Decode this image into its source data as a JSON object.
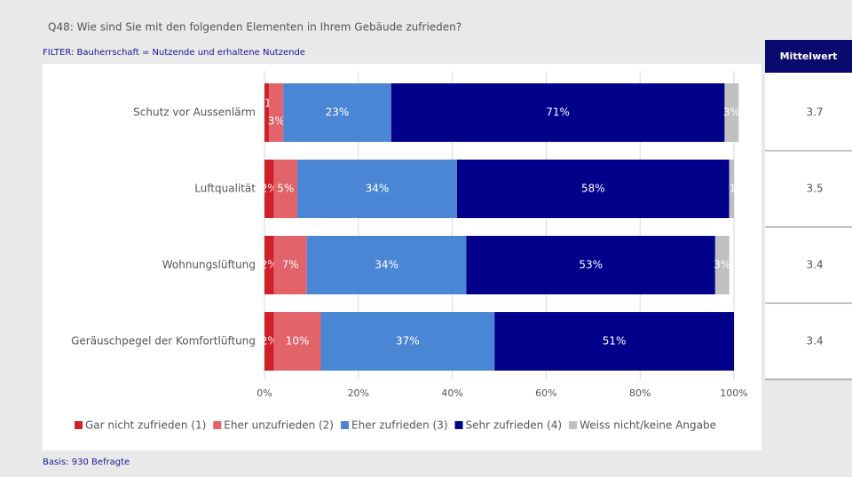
{
  "chart_data": {
    "type": "stacked-bar-horizontal",
    "title": "Q48:  Wie sind Sie mit den folgenden Elementen in Ihrem Gebäude zufrieden?",
    "subtitle": "FILTER: Bauherrschaft = Nutzende und erhaltene Nutzende",
    "note": "Basis: 930 Befragte",
    "categories": [
      "Schutz vor Aussenlärm",
      "Luftqualität",
      "Wohnungslüftung",
      "Geräuschpegel der Komfortlüftung"
    ],
    "series": [
      {
        "name": "Gar nicht zufrieden (1)",
        "color": "#d0202a",
        "values": [
          1,
          2,
          2,
          2
        ],
        "value_labels": [
          "1%",
          "2%",
          "2%",
          "2%"
        ]
      },
      {
        "name": "Eher unzufrieden (2)",
        "color": "#e2636a",
        "values": [
          3,
          5,
          7,
          10
        ],
        "value_labels": [
          "3%",
          "5%",
          "7%",
          "10%"
        ]
      },
      {
        "name": "Eher zufrieden (3)",
        "color": "#4a86d4",
        "values": [
          23,
          34,
          34,
          37
        ],
        "value_labels": [
          "23%",
          "34%",
          "34%",
          "37%"
        ]
      },
      {
        "name": "Sehr zufrieden (4)",
        "color": "#00008b",
        "values": [
          71,
          58,
          53,
          51
        ],
        "value_labels": [
          "71%",
          "58%",
          "53%",
          "51%"
        ]
      },
      {
        "name": "Weiss nicht/keine Angabe",
        "color": "#c0c0c0",
        "values": [
          3,
          1,
          3,
          null
        ],
        "value_labels": [
          "3%",
          "1%",
          "3%",
          null
        ]
      }
    ],
    "xlim": [
      0,
      100
    ],
    "xticks": [
      {
        "value": 0,
        "label": "0%"
      },
      {
        "value": 20,
        "label": "20%"
      },
      {
        "value": 40,
        "label": "40%"
      },
      {
        "value": 60,
        "label": "60%"
      },
      {
        "value": 80,
        "label": "80%"
      },
      {
        "value": 100,
        "label": "100%"
      }
    ],
    "grid": true,
    "legend": "bottom"
  },
  "mittelwert": {
    "header": "Mittelwert",
    "values": [
      3.7,
      3.5,
      3.4,
      3.4
    ]
  }
}
